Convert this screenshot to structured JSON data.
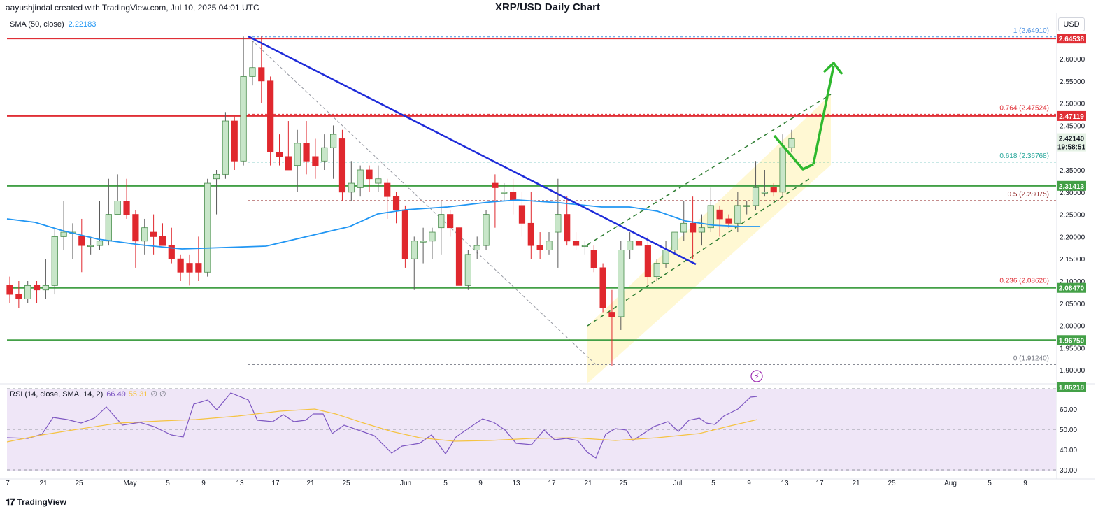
{
  "header": {
    "author_line": "aayushjindal created with TradingView.com, Jul 10, 2025 04:01 UTC",
    "title": "XRP/USD Daily Chart"
  },
  "legend": {
    "sma_label": "SMA (50, close)",
    "sma_value": "2.22183",
    "rsi_label": "RSI (14, close, SMA, 14, 2)",
    "rsi_value": "66.49",
    "rsi_sma_value": "55.31",
    "rsi_extra": "∅ ∅"
  },
  "currency_label": "USD",
  "brand": "TradingView",
  "colors": {
    "up": "#c8e6c9",
    "up_border": "#4c8f4f",
    "down": "#e0282e",
    "sma": "#2196f3",
    "rsi": "#7e57c2",
    "rsi_sma": "#f5c342",
    "resistance": "#e02f36",
    "support": "#43a047",
    "trendline": "#1e2bd9",
    "arrow": "#2eb82e",
    "rsi_band": "#efe6f7"
  },
  "price_axis": {
    "ticks": [
      "2.60000",
      "2.55000",
      "2.50000",
      "2.45000",
      "2.35000",
      "2.30000",
      "2.25000",
      "2.20000",
      "2.15000",
      "2.10000",
      "2.05000",
      "2.00000",
      "1.95000",
      "1.90000"
    ]
  },
  "rsi_axis": {
    "ticks": [
      "70.00",
      "60.00",
      "50.00",
      "40.00",
      "30.00"
    ]
  },
  "time_axis": {
    "labels": [
      "7",
      "21",
      "25",
      "May",
      "5",
      "9",
      "13",
      "17",
      "21",
      "25",
      "Jun",
      "5",
      "9",
      "13",
      "17",
      "21",
      "25",
      "Jul",
      "5",
      "9",
      "13",
      "17",
      "21",
      "25",
      "Aug",
      "5",
      "9"
    ]
  },
  "price_badges": {
    "res_top": "2.64538",
    "res_mid": "2.47119",
    "current_price": "2.42140",
    "countdown": "19:58:51",
    "sup_1": "2.31413",
    "sup_2": "2.08470",
    "sup_3": "1.96750",
    "low": "1.86218"
  },
  "fib_levels": [
    {
      "label": "1 (2.64910)",
      "price": 2.6491
    },
    {
      "label": "0.764 (2.47524)",
      "price": 2.47524
    },
    {
      "label": "0.618 (2.36768)",
      "price": 2.36768
    },
    {
      "label": "0.5 (2.28075)",
      "price": 2.28075
    },
    {
      "label": "0.236 (2.08626)",
      "price": 2.08626
    },
    {
      "label": "0 (1.91240)",
      "price": 1.9124
    }
  ],
  "chart_data": {
    "type": "candlestick",
    "title": "XRP/USD Daily Chart",
    "candles": [
      {
        "d": "Apr 7",
        "o": 2.09,
        "h": 2.11,
        "l": 2.05,
        "c": 2.07
      },
      {
        "d": "Apr 8",
        "o": 2.07,
        "h": 2.1,
        "l": 2.04,
        "c": 2.06
      },
      {
        "d": "Apr 9",
        "o": 2.06,
        "h": 2.1,
        "l": 2.05,
        "c": 2.09
      },
      {
        "d": "Apr 10",
        "o": 2.09,
        "h": 2.1,
        "l": 2.05,
        "c": 2.08
      },
      {
        "d": "Apr 11",
        "o": 2.08,
        "h": 2.15,
        "l": 2.06,
        "c": 2.09
      },
      {
        "d": "Apr 12",
        "o": 2.09,
        "h": 2.22,
        "l": 2.07,
        "c": 2.2
      },
      {
        "d": "Apr 13",
        "o": 2.2,
        "h": 2.28,
        "l": 2.17,
        "c": 2.21
      },
      {
        "d": "Apr 14",
        "o": 2.21,
        "h": 2.23,
        "l": 2.15,
        "c": 2.21
      },
      {
        "d": "Apr 15",
        "o": 2.2,
        "h": 2.24,
        "l": 2.12,
        "c": 2.18
      },
      {
        "d": "Apr 16",
        "o": 2.18,
        "h": 2.2,
        "l": 2.16,
        "c": 2.18
      },
      {
        "d": "Apr 17",
        "o": 2.18,
        "h": 2.28,
        "l": 2.17,
        "c": 2.19
      },
      {
        "d": "Apr 18",
        "o": 2.19,
        "h": 2.33,
        "l": 2.18,
        "c": 2.25
      },
      {
        "d": "Apr 19",
        "o": 2.25,
        "h": 2.34,
        "l": 2.25,
        "c": 2.28
      },
      {
        "d": "Apr 20",
        "o": 2.28,
        "h": 2.33,
        "l": 2.24,
        "c": 2.25
      },
      {
        "d": "Apr 21",
        "o": 2.25,
        "h": 2.26,
        "l": 2.13,
        "c": 2.19
      },
      {
        "d": "Apr 22",
        "o": 2.19,
        "h": 2.24,
        "l": 2.16,
        "c": 2.22
      },
      {
        "d": "Apr 23",
        "o": 2.21,
        "h": 2.25,
        "l": 2.16,
        "c": 2.2
      },
      {
        "d": "Apr 24",
        "o": 2.2,
        "h": 2.23,
        "l": 2.18,
        "c": 2.18
      },
      {
        "d": "Apr 25",
        "o": 2.18,
        "h": 2.22,
        "l": 2.14,
        "c": 2.15
      },
      {
        "d": "Apr 26",
        "o": 2.15,
        "h": 2.16,
        "l": 2.1,
        "c": 2.12
      },
      {
        "d": "Apr 27",
        "o": 2.14,
        "h": 2.16,
        "l": 2.09,
        "c": 2.12
      },
      {
        "d": "Apr 28",
        "o": 2.14,
        "h": 2.2,
        "l": 2.1,
        "c": 2.12
      },
      {
        "d": "Apr 29",
        "o": 2.12,
        "h": 2.33,
        "l": 2.11,
        "c": 2.32
      },
      {
        "d": "Apr 30",
        "o": 2.33,
        "h": 2.35,
        "l": 2.25,
        "c": 2.34
      },
      {
        "d": "May 1",
        "o": 2.34,
        "h": 2.48,
        "l": 2.33,
        "c": 2.46
      },
      {
        "d": "May 2",
        "o": 2.46,
        "h": 2.47,
        "l": 2.35,
        "c": 2.37
      },
      {
        "d": "May 3",
        "o": 2.37,
        "h": 2.65,
        "l": 2.36,
        "c": 2.56
      },
      {
        "d": "May 4",
        "o": 2.56,
        "h": 2.64,
        "l": 2.54,
        "c": 2.58
      },
      {
        "d": "May 5",
        "o": 2.58,
        "h": 2.65,
        "l": 2.5,
        "c": 2.55
      },
      {
        "d": "May 6",
        "o": 2.55,
        "h": 2.56,
        "l": 2.36,
        "c": 2.39
      },
      {
        "d": "May 7",
        "o": 2.39,
        "h": 2.43,
        "l": 2.36,
        "c": 2.38
      },
      {
        "d": "May 8",
        "o": 2.38,
        "h": 2.46,
        "l": 2.35,
        "c": 2.35
      },
      {
        "d": "May 9",
        "o": 2.36,
        "h": 2.44,
        "l": 2.3,
        "c": 2.41
      },
      {
        "d": "May 10",
        "o": 2.41,
        "h": 2.46,
        "l": 2.34,
        "c": 2.37
      },
      {
        "d": "May 11",
        "o": 2.38,
        "h": 2.42,
        "l": 2.33,
        "c": 2.36
      },
      {
        "d": "May 12",
        "o": 2.37,
        "h": 2.43,
        "l": 2.35,
        "c": 2.4
      },
      {
        "d": "May 13",
        "o": 2.4,
        "h": 2.45,
        "l": 2.33,
        "c": 2.43
      },
      {
        "d": "May 14",
        "o": 2.42,
        "h": 2.44,
        "l": 2.28,
        "c": 2.3
      },
      {
        "d": "May 15",
        "o": 2.3,
        "h": 2.37,
        "l": 2.28,
        "c": 2.32
      },
      {
        "d": "May 16",
        "o": 2.31,
        "h": 2.36,
        "l": 2.29,
        "c": 2.35
      },
      {
        "d": "May 17",
        "o": 2.35,
        "h": 2.36,
        "l": 2.3,
        "c": 2.33
      },
      {
        "d": "May 18",
        "o": 2.32,
        "h": 2.36,
        "l": 2.3,
        "c": 2.33
      },
      {
        "d": "May 19",
        "o": 2.32,
        "h": 2.33,
        "l": 2.24,
        "c": 2.29
      },
      {
        "d": "May 20",
        "o": 2.29,
        "h": 2.3,
        "l": 2.23,
        "c": 2.26
      },
      {
        "d": "May 21",
        "o": 2.26,
        "h": 2.27,
        "l": 2.13,
        "c": 2.15
      },
      {
        "d": "May 22",
        "o": 2.15,
        "h": 2.2,
        "l": 2.08,
        "c": 2.19
      },
      {
        "d": "May 23",
        "o": 2.19,
        "h": 2.22,
        "l": 2.14,
        "c": 2.19
      },
      {
        "d": "May 24",
        "o": 2.19,
        "h": 2.22,
        "l": 2.15,
        "c": 2.21
      },
      {
        "d": "May 25",
        "o": 2.22,
        "h": 2.28,
        "l": 2.16,
        "c": 2.25
      },
      {
        "d": "May 26",
        "o": 2.25,
        "h": 2.26,
        "l": 2.2,
        "c": 2.22
      },
      {
        "d": "May 27",
        "o": 2.22,
        "h": 2.23,
        "l": 2.06,
        "c": 2.09
      },
      {
        "d": "May 28",
        "o": 2.09,
        "h": 2.17,
        "l": 2.08,
        "c": 2.16
      },
      {
        "d": "May 29",
        "o": 2.17,
        "h": 2.2,
        "l": 2.15,
        "c": 2.18
      },
      {
        "d": "May 30",
        "o": 2.18,
        "h": 2.26,
        "l": 2.17,
        "c": 2.25
      },
      {
        "d": "May 31",
        "o": 2.32,
        "h": 2.34,
        "l": 2.22,
        "c": 2.31
      },
      {
        "d": "Jun 1",
        "o": 2.3,
        "h": 2.32,
        "l": 2.28,
        "c": 2.3
      },
      {
        "d": "Jun 2",
        "o": 2.3,
        "h": 2.33,
        "l": 2.25,
        "c": 2.28
      },
      {
        "d": "Jun 3",
        "o": 2.27,
        "h": 2.3,
        "l": 2.2,
        "c": 2.23
      },
      {
        "d": "Jun 4",
        "o": 2.23,
        "h": 2.3,
        "l": 2.15,
        "c": 2.18
      },
      {
        "d": "Jun 5",
        "o": 2.18,
        "h": 2.21,
        "l": 2.15,
        "c": 2.17
      },
      {
        "d": "Jun 6",
        "o": 2.17,
        "h": 2.21,
        "l": 2.16,
        "c": 2.19
      },
      {
        "d": "Jun 7",
        "o": 2.21,
        "h": 2.33,
        "l": 2.13,
        "c": 2.25
      },
      {
        "d": "Jun 8",
        "o": 2.25,
        "h": 2.29,
        "l": 2.18,
        "c": 2.19
      },
      {
        "d": "Jun 9",
        "o": 2.19,
        "h": 2.21,
        "l": 2.17,
        "c": 2.18
      },
      {
        "d": "Jun 10",
        "o": 2.18,
        "h": 2.19,
        "l": 2.16,
        "c": 2.18
      },
      {
        "d": "Jun 11",
        "o": 2.17,
        "h": 2.18,
        "l": 2.12,
        "c": 2.13
      },
      {
        "d": "Jun 12",
        "o": 2.13,
        "h": 2.14,
        "l": 2.03,
        "c": 2.04
      },
      {
        "d": "Jun 13",
        "o": 2.03,
        "h": 2.08,
        "l": 1.91,
        "c": 2.02
      },
      {
        "d": "Jun 14",
        "o": 2.02,
        "h": 2.19,
        "l": 1.99,
        "c": 2.17
      },
      {
        "d": "Jun 15",
        "o": 2.17,
        "h": 2.21,
        "l": 2.15,
        "c": 2.19
      },
      {
        "d": "Jun 16",
        "o": 2.19,
        "h": 2.23,
        "l": 2.17,
        "c": 2.18
      },
      {
        "d": "Jun 17",
        "o": 2.18,
        "h": 2.2,
        "l": 2.09,
        "c": 2.11
      },
      {
        "d": "Jun 18",
        "o": 2.11,
        "h": 2.15,
        "l": 2.1,
        "c": 2.14
      },
      {
        "d": "Jun 19",
        "o": 2.14,
        "h": 2.19,
        "l": 2.13,
        "c": 2.17
      },
      {
        "d": "Jun 20",
        "o": 2.17,
        "h": 2.21,
        "l": 2.16,
        "c": 2.21
      },
      {
        "d": "Jun 21",
        "o": 2.21,
        "h": 2.28,
        "l": 2.19,
        "c": 2.23
      },
      {
        "d": "Jun 22",
        "o": 2.23,
        "h": 2.29,
        "l": 2.15,
        "c": 2.21
      },
      {
        "d": "Jun 23",
        "o": 2.21,
        "h": 2.25,
        "l": 2.18,
        "c": 2.22
      },
      {
        "d": "Jun 24",
        "o": 2.22,
        "h": 2.31,
        "l": 2.21,
        "c": 2.27
      },
      {
        "d": "Jun 25",
        "o": 2.26,
        "h": 2.27,
        "l": 2.2,
        "c": 2.24
      },
      {
        "d": "Jun 26",
        "o": 2.24,
        "h": 2.25,
        "l": 2.22,
        "c": 2.23
      },
      {
        "d": "Jun 27",
        "o": 2.23,
        "h": 2.3,
        "l": 2.21,
        "c": 2.27
      },
      {
        "d": "Jun 28",
        "o": 2.27,
        "h": 2.28,
        "l": 2.25,
        "c": 2.27
      },
      {
        "d": "Jun 29",
        "o": 2.27,
        "h": 2.37,
        "l": 2.26,
        "c": 2.31
      },
      {
        "d": "Jun 30",
        "o": 2.3,
        "h": 2.35,
        "l": 2.29,
        "c": 2.3
      },
      {
        "d": "Jul 1",
        "o": 2.31,
        "h": 2.32,
        "l": 2.29,
        "c": 2.3
      },
      {
        "d": "Jul 2",
        "o": 2.3,
        "h": 2.43,
        "l": 2.29,
        "c": 2.4
      },
      {
        "d": "Jul 3",
        "o": 2.4,
        "h": 2.44,
        "l": 2.39,
        "c": 2.42
      }
    ]
  }
}
